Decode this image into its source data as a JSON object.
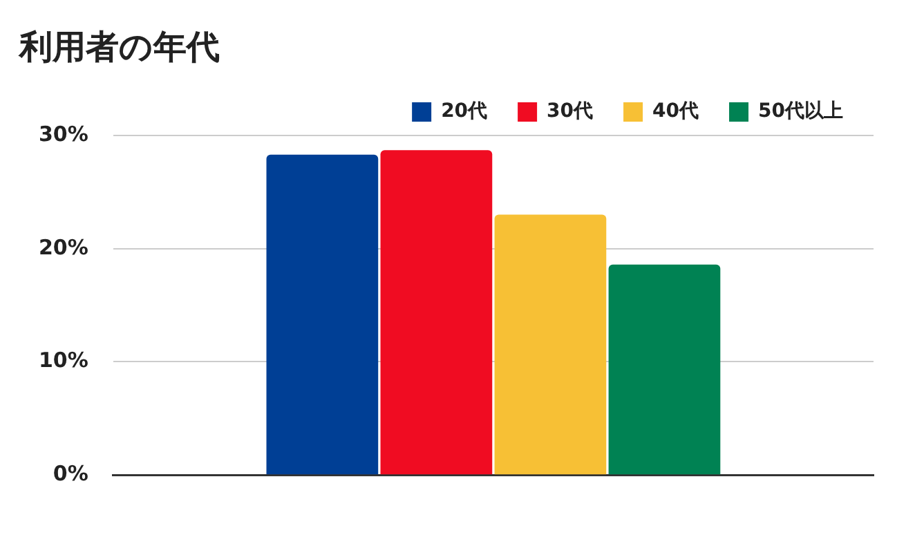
{
  "chart_data": {
    "type": "bar",
    "title": "利用者の年代",
    "categories": [
      null
    ],
    "series": [
      {
        "name": "20代",
        "color": "#003f95",
        "values": [
          28.3
        ]
      },
      {
        "name": "30代",
        "color": "#f00c22",
        "values": [
          28.7
        ]
      },
      {
        "name": "40代",
        "color": "#f7c035",
        "values": [
          23.0
        ]
      },
      {
        "name": "50代以上",
        "color": "#008253",
        "values": [
          18.6
        ]
      }
    ],
    "ylim": [
      0,
      30
    ],
    "yticks": [
      {
        "value": 0,
        "label": "0%"
      },
      {
        "value": 10,
        "label": "10%"
      },
      {
        "value": 20,
        "label": "20%"
      },
      {
        "value": 30,
        "label": "30%"
      }
    ],
    "grid": "y",
    "legend": "top right"
  }
}
